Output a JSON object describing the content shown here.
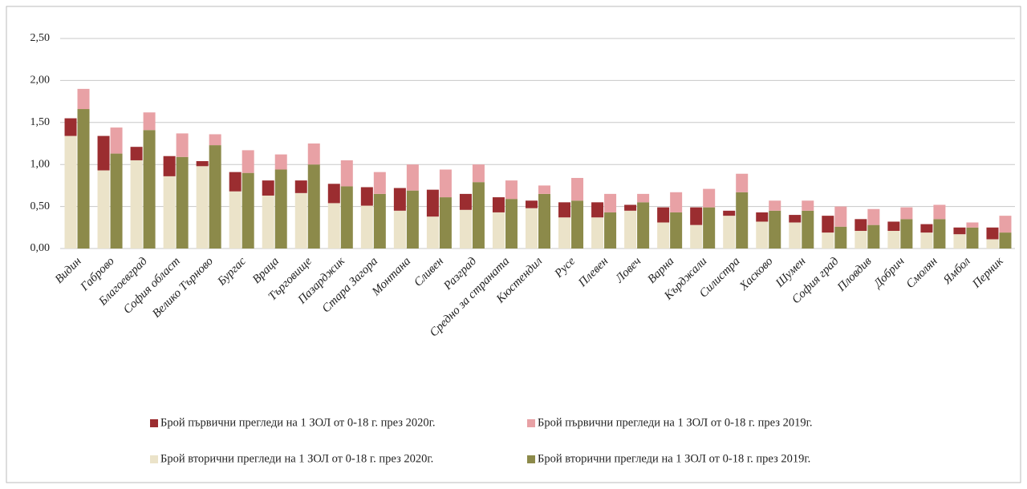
{
  "chart_data": {
    "type": "grouped_stacked_bar",
    "categories": [
      "Видин",
      "Габрово",
      "Благоевград",
      "София област",
      "Велико Търново",
      "Бургас",
      "Враца",
      "Търговище",
      "Пазарджик",
      "Стара Загора",
      "Монтана",
      "Сливен",
      "Разград",
      "Средно за страната",
      "Кюстендил",
      "Русе",
      "Плевен",
      "Ловеч",
      "Варна",
      "Кърджали",
      "Силистра",
      "Хасково",
      "Шумен",
      "София град",
      "Пловдив",
      "Добрич",
      "Смолян",
      "Ямбол",
      "Перник"
    ],
    "series": [
      {
        "name": "Брой вторични прегледи на 1 ЗОЛ от 0-18  г. през 2020г.",
        "color": "#ebe3c9",
        "stack": 0,
        "values": [
          1.34,
          0.93,
          1.05,
          0.86,
          0.98,
          0.68,
          0.63,
          0.66,
          0.54,
          0.51,
          0.45,
          0.38,
          0.46,
          0.43,
          0.48,
          0.37,
          0.37,
          0.45,
          0.31,
          0.28,
          0.39,
          0.32,
          0.31,
          0.19,
          0.21,
          0.21,
          0.19,
          0.17,
          0.11
        ]
      },
      {
        "name": "Брой първични прегледи на 1 ЗОЛ от 0-18  г. през 2020г.",
        "color": "#9b2d30",
        "stack": 0,
        "values": [
          0.21,
          0.41,
          0.16,
          0.24,
          0.06,
          0.23,
          0.18,
          0.15,
          0.23,
          0.22,
          0.27,
          0.32,
          0.19,
          0.18,
          0.09,
          0.18,
          0.18,
          0.07,
          0.18,
          0.21,
          0.06,
          0.11,
          0.09,
          0.2,
          0.14,
          0.11,
          0.1,
          0.08,
          0.14
        ]
      },
      {
        "name": "Брой вторични прегледи на 1 ЗОЛ от 0-18 г. през 2019г.",
        "color": "#8c8a4a",
        "stack": 1,
        "values": [
          1.66,
          1.13,
          1.41,
          1.09,
          1.23,
          0.9,
          0.94,
          1.0,
          0.74,
          0.65,
          0.69,
          0.61,
          0.79,
          0.59,
          0.65,
          0.57,
          0.43,
          0.55,
          0.43,
          0.49,
          0.67,
          0.45,
          0.45,
          0.26,
          0.28,
          0.35,
          0.35,
          0.25,
          0.19
        ]
      },
      {
        "name": "Брой първични прегледи на 1 ЗОЛ от 0-18 г. през 2019г.",
        "color": "#e8a1a5",
        "stack": 1,
        "values": [
          0.24,
          0.31,
          0.21,
          0.28,
          0.13,
          0.27,
          0.18,
          0.25,
          0.31,
          0.26,
          0.31,
          0.33,
          0.21,
          0.22,
          0.1,
          0.27,
          0.22,
          0.1,
          0.24,
          0.22,
          0.22,
          0.12,
          0.12,
          0.24,
          0.19,
          0.14,
          0.17,
          0.06,
          0.2
        ]
      }
    ],
    "ylim": [
      0,
      2.5
    ],
    "yticks": [
      {
        "value": 0,
        "label": "0,00"
      },
      {
        "value": 0.5,
        "label": "0,50"
      },
      {
        "value": 1,
        "label": "1,00"
      },
      {
        "value": 1.5,
        "label": "1,50"
      },
      {
        "value": 2,
        "label": "2,00"
      },
      {
        "value": 2.5,
        "label": "2,50"
      }
    ],
    "grid": true
  }
}
